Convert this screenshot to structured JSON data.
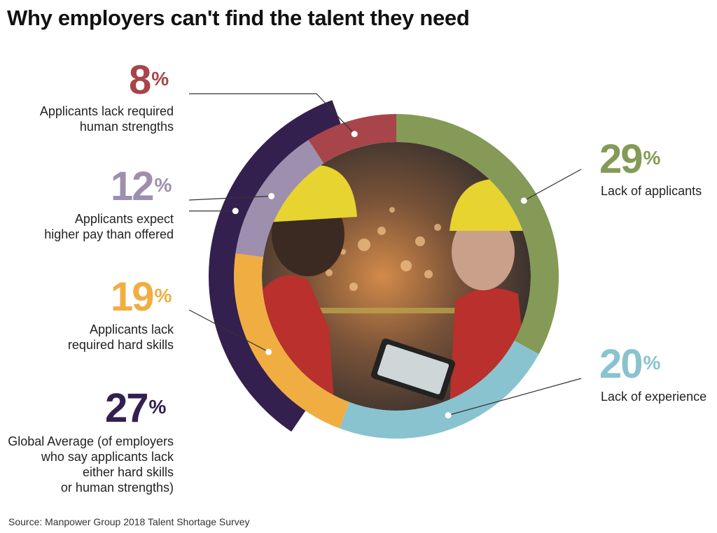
{
  "title": "Why employers can't find the talent they need",
  "source": "Source: Manpower Group 2018 Talent Shortage Survey",
  "photo_icon": "workers-with-tablet-photo",
  "chart_data": {
    "type": "pie",
    "title": "Why employers can't find the talent they need",
    "slices": [
      {
        "value": 29,
        "pct_text": "29",
        "label": "Lack of applicants",
        "color": "#849a56"
      },
      {
        "value": 20,
        "pct_text": "20",
        "label": "Lack of experience",
        "color": "#89c3cf"
      },
      {
        "value": 19,
        "pct_text": "19",
        "label": "Applicants lack required hard skills",
        "color": "#f0ae42"
      },
      {
        "value": 12,
        "pct_text": "12",
        "label": "Applicants expect higher pay than offered",
        "color": "#9e8fae"
      },
      {
        "value": 8,
        "pct_text": "8",
        "label": "Applicants lack required human strengths",
        "color": "#a8454a"
      }
    ],
    "overlay": {
      "value": 27,
      "pct_text": "27",
      "label": "Global Average (of employers who say applicants lack either hard skills or human strengths)",
      "color": "#33204f"
    },
    "percent_symbol": "%",
    "label_lines": {
      "lack_of_applicants": [
        "Lack of applicants"
      ],
      "lack_of_experience": [
        "Lack of experience"
      ],
      "hard_skills": [
        "Applicants lack",
        "required hard skills"
      ],
      "higher_pay": [
        "Applicants expect",
        "higher pay than offered"
      ],
      "human_strengths": [
        "Applicants lack required",
        "human strengths"
      ],
      "global_average": [
        "Global Average (of employers",
        "who say applicants lack",
        "either hard skills",
        "or human strengths)"
      ]
    }
  }
}
